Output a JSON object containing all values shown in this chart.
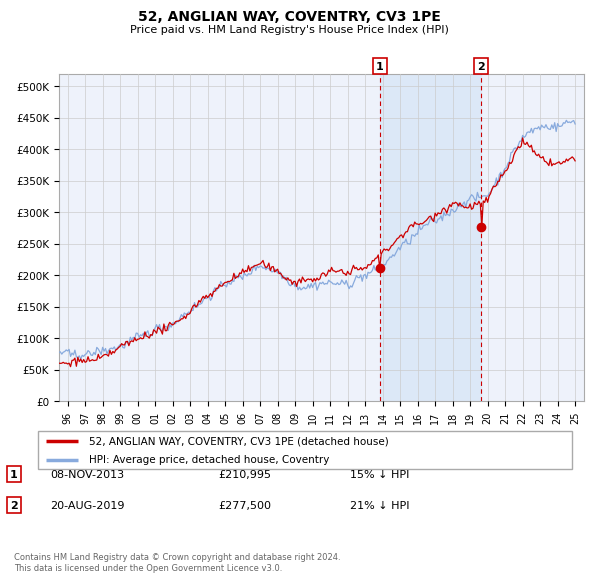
{
  "title": "52, ANGLIAN WAY, COVENTRY, CV3 1PE",
  "subtitle": "Price paid vs. HM Land Registry's House Price Index (HPI)",
  "yticks": [
    0,
    50000,
    100000,
    150000,
    200000,
    250000,
    300000,
    350000,
    400000,
    450000,
    500000
  ],
  "ytick_labels": [
    "£0",
    "£50K",
    "£100K",
    "£150K",
    "£200K",
    "£250K",
    "£300K",
    "£350K",
    "£400K",
    "£450K",
    "£500K"
  ],
  "ylim": [
    0,
    520000
  ],
  "xlim_start": 1995.5,
  "xlim_end": 2025.5,
  "background_color": "#ffffff",
  "plot_background": "#eef2fb",
  "grid_color": "#cccccc",
  "hpi_color": "#88aadd",
  "price_color": "#cc0000",
  "shade_color": "#dce8f7",
  "marker1_date": 2013.85,
  "marker2_date": 2019.63,
  "marker1_price": 210995,
  "marker2_price": 277500,
  "legend_label_price": "52, ANGLIAN WAY, COVENTRY, CV3 1PE (detached house)",
  "legend_label_hpi": "HPI: Average price, detached house, Coventry",
  "annotation1_label": "08-NOV-2013",
  "annotation1_price_str": "£210,995",
  "annotation1_pct": "15% ↓ HPI",
  "annotation2_label": "20-AUG-2019",
  "annotation2_price_str": "£277,500",
  "annotation2_pct": "21% ↓ HPI",
  "footer": "Contains HM Land Registry data © Crown copyright and database right 2024.\nThis data is licensed under the Open Government Licence v3.0."
}
